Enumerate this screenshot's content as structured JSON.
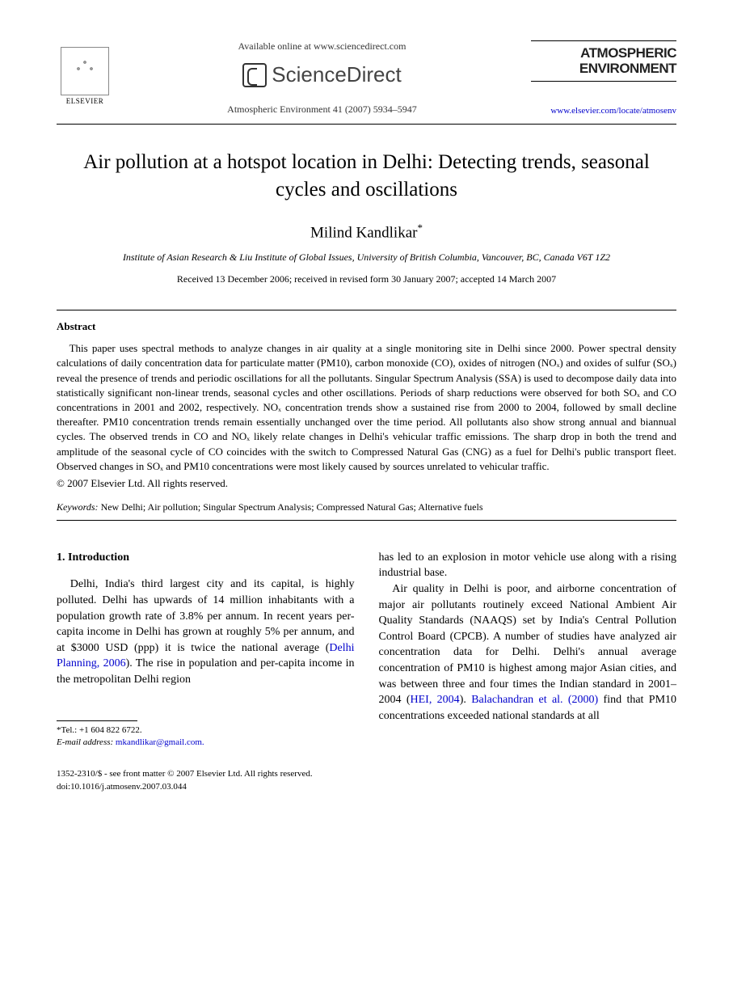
{
  "header": {
    "publisher_name": "ELSEVIER",
    "available_text": "Available online at www.sciencedirect.com",
    "sciencedirect_label": "ScienceDirect",
    "journal_reference": "Atmospheric Environment 41 (2007) 5934–5947",
    "journal_title_line1": "ATMOSPHERIC",
    "journal_title_line2": "ENVIRONMENT",
    "journal_url": "www.elsevier.com/locate/atmosenv"
  },
  "article": {
    "title": "Air pollution at a hotspot location in Delhi: Detecting trends, seasonal cycles and oscillations",
    "author": "Milind Kandlikar",
    "author_marker": "*",
    "affiliation": "Institute of Asian Research & Liu Institute of Global Issues, University of British Columbia, Vancouver, BC, Canada V6T 1Z2",
    "dates": "Received 13 December 2006; received in revised form 30 January 2007; accepted 14 March 2007"
  },
  "abstract": {
    "heading": "Abstract",
    "body": "This paper uses spectral methods to analyze changes in air quality at a single monitoring site in Delhi since 2000. Power spectral density calculations of daily concentration data for particulate matter (PM10), carbon monoxide (CO), oxides of nitrogen (NOₓ) and oxides of sulfur (SOₓ) reveal the presence of trends and periodic oscillations for all the pollutants. Singular Spectrum Analysis (SSA) is used to decompose daily data into statistically significant non-linear trends, seasonal cycles and other oscillations. Periods of sharp reductions were observed for both SOₓ and CO concentrations in 2001 and 2002, respectively. NOₓ concentration trends show a sustained rise from 2000 to 2004, followed by small decline thereafter. PM10 concentration trends remain essentially unchanged over the time period. All pollutants also show strong annual and biannual cycles. The observed trends in CO and NOₓ likely relate changes in Delhi's vehicular traffic emissions. The sharp drop in both the trend and amplitude of the seasonal cycle of CO coincides with the switch to Compressed Natural Gas (CNG) as a fuel for Delhi's public transport fleet. Observed changes in SOₓ and PM10 concentrations were most likely caused by sources unrelated to vehicular traffic.",
    "copyright": "© 2007 Elsevier Ltd. All rights reserved."
  },
  "keywords": {
    "label": "Keywords:",
    "list": "New Delhi; Air pollution; Singular Spectrum Analysis; Compressed Natural Gas; Alternative fuels"
  },
  "introduction": {
    "heading": "1. Introduction",
    "col1_para1_a": "Delhi, India's third largest city and its capital, is highly polluted. Delhi has upwards of 14 million inhabitants with a population growth rate of 3.8% per annum. In recent years per-capita income in Delhi has grown at roughly 5% per annum, and at $3000 USD (ppp) it is twice the national average (",
    "col1_cite1": "Delhi Planning, 2006",
    "col1_para1_b": "). The rise in population and per-capita income in the metropolitan Delhi region",
    "col2_para1": "has led to an explosion in motor vehicle use along with a rising industrial base.",
    "col2_para2_a": "Air quality in Delhi is poor, and airborne concentration of major air pollutants routinely exceed National Ambient Air Quality Standards (NAAQS) set by India's Central Pollution Control Board (CPCB). A number of studies have analyzed air concentration data for Delhi. Delhi's annual average concentration of PM10 is highest among major Asian cities, and was between three and four times the Indian standard in 2001–2004 (",
    "col2_cite1": "HEI, 2004",
    "col2_para2_b": "). ",
    "col2_cite2": "Balachandran et al. (2000)",
    "col2_para2_c": " find that PM10 concentrations exceeded national standards at all"
  },
  "footnote": {
    "tel_label": "*Tel.: ",
    "tel": "+1 604 822 6722.",
    "email_label": "E-mail address:",
    "email": "mkandlikar@gmail.com."
  },
  "footer": {
    "issn_line": "1352-2310/$ - see front matter © 2007 Elsevier Ltd. All rights reserved.",
    "doi": "doi:10.1016/j.atmosenv.2007.03.044"
  }
}
